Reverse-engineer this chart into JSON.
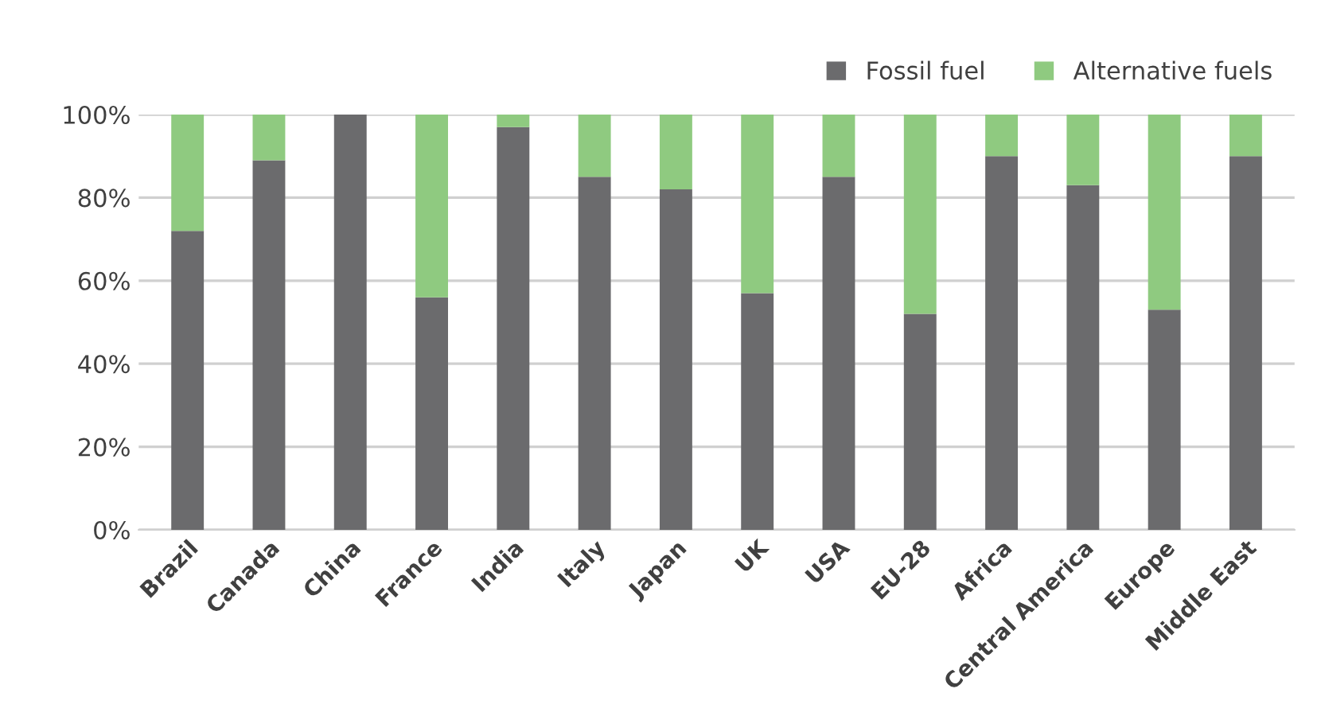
{
  "chart_data": {
    "type": "bar",
    "stacked": true,
    "categories": [
      "Brazil",
      "Canada",
      "China",
      "France",
      "India",
      "Italy",
      "Japan",
      "UK",
      "USA",
      "EU-28",
      "Africa",
      "Central America",
      "Europe",
      "Middle East"
    ],
    "series": [
      {
        "name": "Fossil fuel",
        "color": "#6b6b6d",
        "values": [
          72,
          89,
          100,
          56,
          97,
          85,
          82,
          57,
          85,
          52,
          90,
          83,
          53,
          90
        ]
      },
      {
        "name": "Alternative fuels",
        "color": "#8fca80",
        "values": [
          28,
          11,
          0,
          44,
          3,
          15,
          18,
          43,
          15,
          48,
          10,
          17,
          47,
          10
        ]
      }
    ],
    "ylim": [
      0,
      100
    ],
    "yticks": [
      {
        "value": 0,
        "label": "0%"
      },
      {
        "value": 20,
        "label": "20%"
      },
      {
        "value": 40,
        "label": "40%"
      },
      {
        "value": 60,
        "label": "60%"
      },
      {
        "value": 80,
        "label": "80%"
      },
      {
        "value": 100,
        "label": "100%"
      }
    ],
    "grid": "y",
    "legend": "top right"
  }
}
